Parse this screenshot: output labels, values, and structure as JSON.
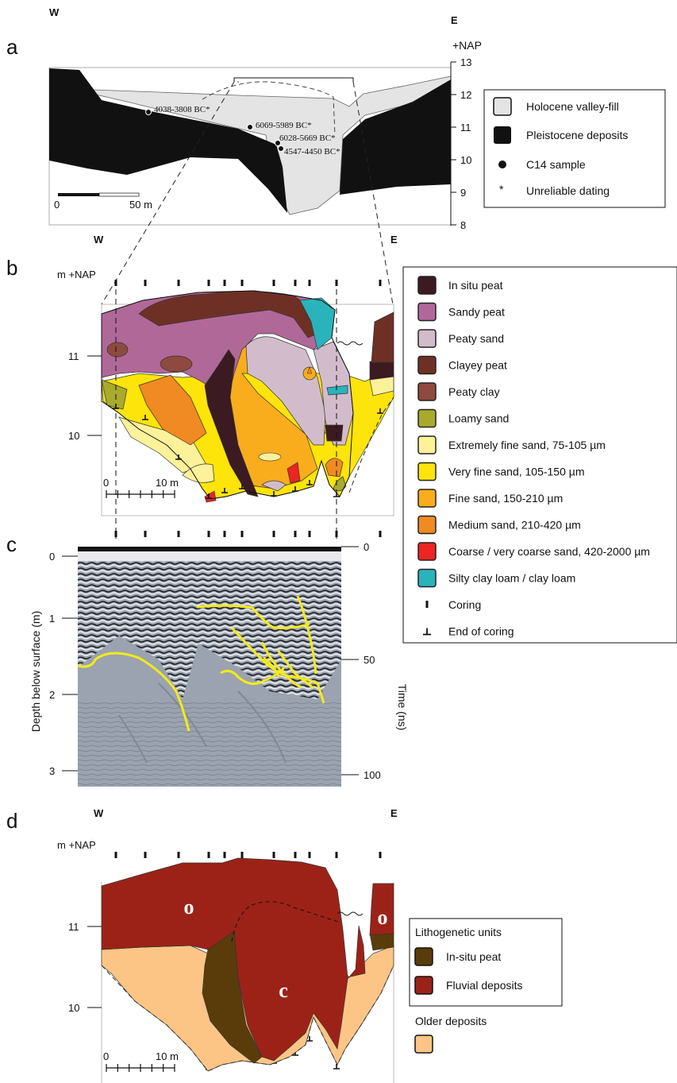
{
  "panel_a": {
    "letter": "a",
    "west": "W",
    "east": "E",
    "axis_unit": "+NAP",
    "axis_ticks": [
      "13",
      "12",
      "11",
      "10",
      "9",
      "8"
    ],
    "samples": [
      {
        "label": "4038-3808 BC*"
      },
      {
        "label": "6069-5989 BC*"
      },
      {
        "label": "6028-5669 BC*"
      },
      {
        "label": "4547-4450 BC*"
      }
    ],
    "scale": {
      "start": "0",
      "end": "50 m"
    },
    "legend": [
      {
        "label": "Holocene valley-fill",
        "color": "#e4e4e4"
      },
      {
        "label": "Pleistocene deposits",
        "color": "#111111"
      },
      {
        "label": "C14 sample"
      },
      {
        "label": "Unreliable dating"
      }
    ]
  },
  "panel_b": {
    "letter": "b",
    "west": "W",
    "east": "E",
    "axis_unit": "m +NAP",
    "axis_ticks": [
      "11",
      "10"
    ],
    "scale": {
      "start": "0",
      "end": "10 m"
    },
    "legend": [
      {
        "label": "In situ peat",
        "color": "#3b1a22"
      },
      {
        "label": "Sandy peat",
        "color": "#b06898"
      },
      {
        "label": "Peaty sand",
        "color": "#d2bccb"
      },
      {
        "label": "Clayey peat",
        "color": "#6e3025"
      },
      {
        "label": "Peaty clay",
        "color": "#8e4a3e"
      },
      {
        "label": "Loamy sand",
        "color": "#a8aa2e"
      },
      {
        "label": "Extremely fine sand, 75-105 µm",
        "color": "#fdf19a"
      },
      {
        "label": "Very fine sand, 105-150 µm",
        "color": "#fde40a"
      },
      {
        "label": "Fine sand, 150-210 µm",
        "color": "#f9ad1c"
      },
      {
        "label": "Medium sand, 210-420 µm",
        "color": "#f08a22"
      },
      {
        "label": "Coarse / very coarse sand, 420-2000 µm",
        "color": "#ec2424"
      },
      {
        "label": "Silty clay loam / clay loam",
        "color": "#2ab3bb"
      },
      {
        "label": "Coring"
      },
      {
        "label": "End of coring"
      }
    ]
  },
  "panel_c": {
    "letter": "c",
    "left_axis_label": "Depth below surface (m)",
    "left_ticks": [
      "0",
      "1",
      "2",
      "3"
    ],
    "right_axis_label": "Time (ns)",
    "right_ticks": [
      "0",
      "50",
      "100"
    ],
    "reflector_color": "#f4ea1a"
  },
  "panel_d": {
    "letter": "d",
    "west": "W",
    "east": "E",
    "axis_unit": "m +NAP",
    "axis_ticks": [
      "11",
      "10"
    ],
    "scale": {
      "start": "0",
      "end": "10 m"
    },
    "unit_labels": [
      "o",
      "c",
      "o"
    ],
    "legend_title": "Lithogenetic units",
    "legend": [
      {
        "label": "In-situ peat",
        "color": "#5a3c0a"
      },
      {
        "label": "Fluvial deposits",
        "color": "#9c2217"
      }
    ],
    "older_title": "Older deposits",
    "older_color": "#fcc585"
  }
}
